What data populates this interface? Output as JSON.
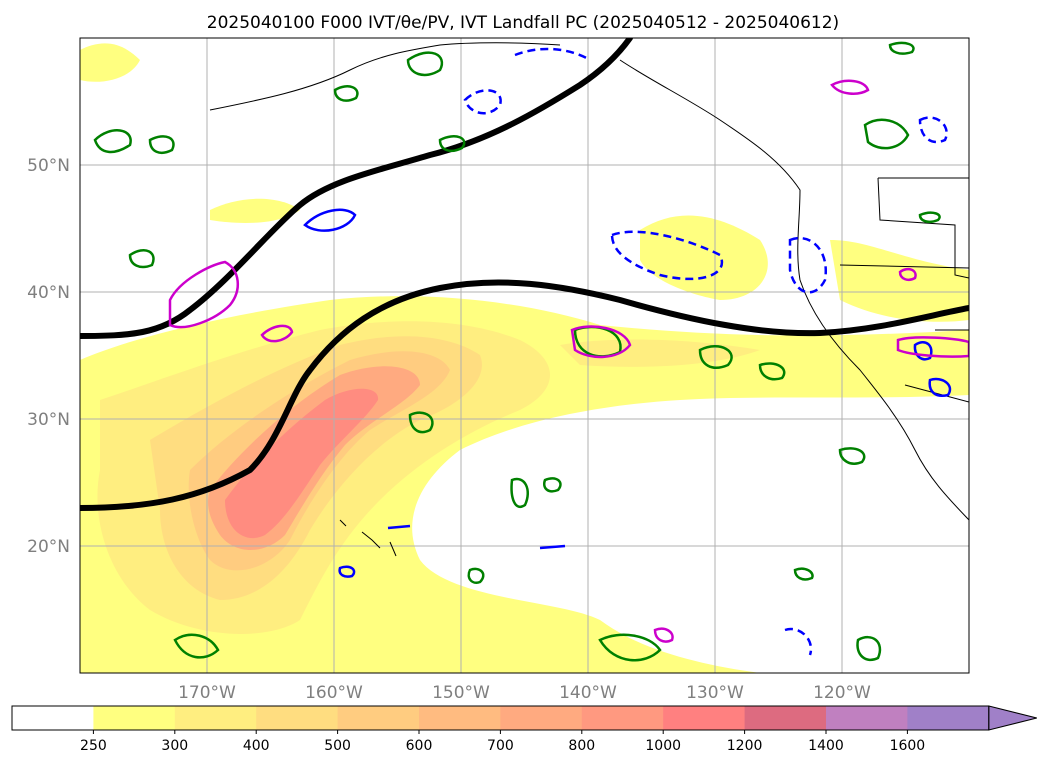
{
  "figure": {
    "title": "2025040100 F000 IVT/θe/PV, IVT Landfall PC (2025040512 - 2025040612)"
  },
  "map": {
    "region": "North Pacific / US West Coast",
    "lat_range": [
      10,
      60
    ],
    "lon_range": [
      -180,
      -110
    ],
    "lat_labels": [
      "20°N",
      "30°N",
      "40°N",
      "50°N"
    ],
    "lon_labels": [
      "170°W",
      "160°W",
      "150°W",
      "140°W",
      "130°W",
      "120°W"
    ],
    "gridlines": true,
    "contour_colors": {
      "green": "#008000",
      "blue": "#0000ff",
      "magenta": "#cc00cc",
      "black": "#000000"
    }
  },
  "colorbar": {
    "label_values": [
      "250",
      "300",
      "400",
      "500",
      "600",
      "700",
      "800",
      "1000",
      "1200",
      "1400",
      "1600"
    ],
    "colors": [
      "#ffffff",
      "#ffff80",
      "#ffee80",
      "#ffdd80",
      "#ffcc80",
      "#ffbb80",
      "#ffaa80",
      "#ff9980",
      "#ff8080",
      "#dd6b80",
      "#c080c0",
      "#a080c8"
    ],
    "extend": "max"
  }
}
